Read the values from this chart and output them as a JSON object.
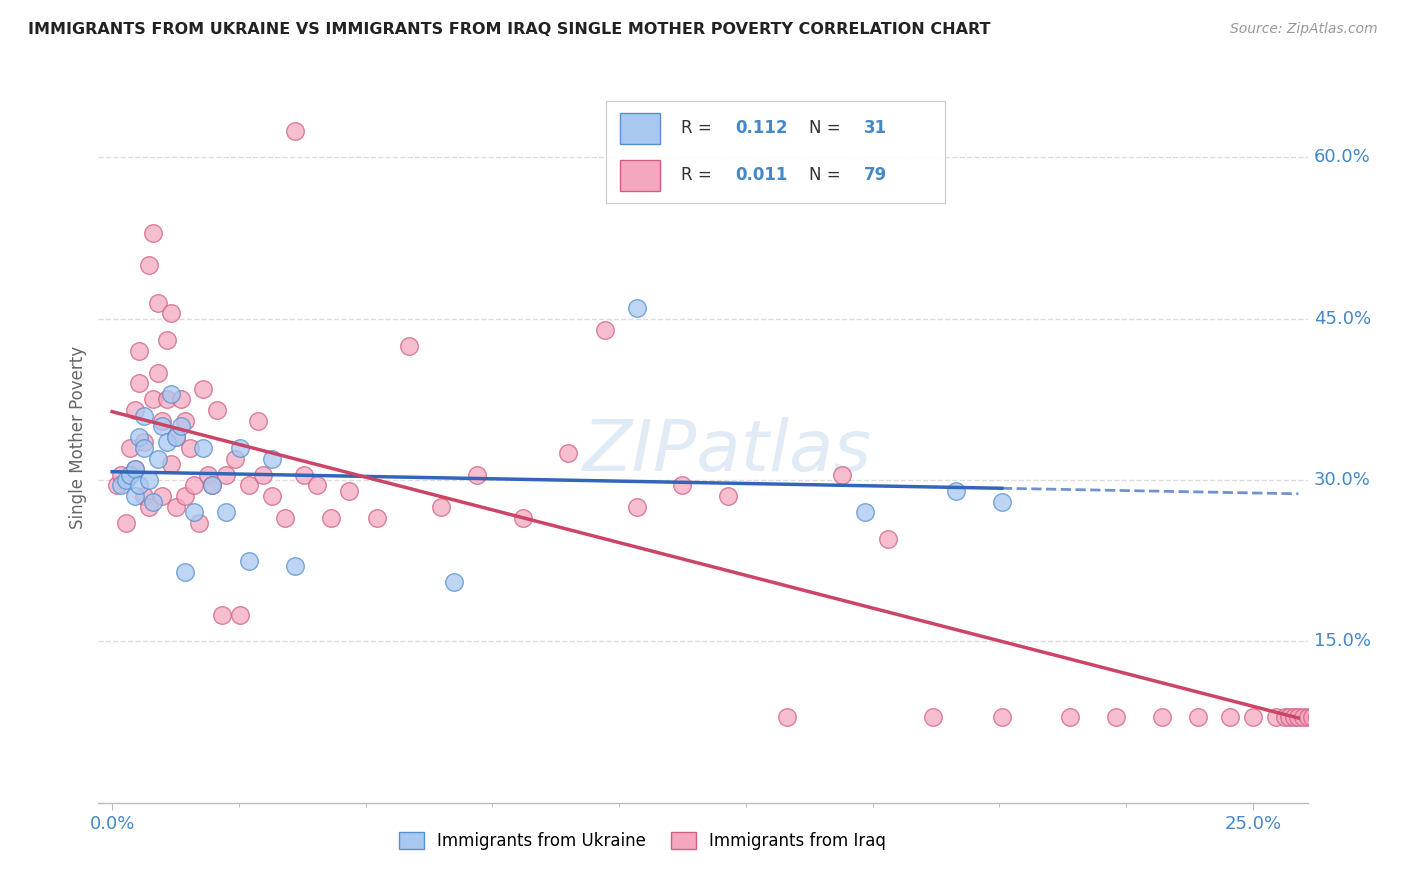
{
  "title": "IMMIGRANTS FROM UKRAINE VS IMMIGRANTS FROM IRAQ SINGLE MOTHER POVERTY CORRELATION CHART",
  "source": "Source: ZipAtlas.com",
  "ylabel": "Single Mother Poverty",
  "ukraine_color": "#a8c8f0",
  "iraq_color": "#f4a8c0",
  "ukraine_edge_color": "#5590d0",
  "iraq_edge_color": "#d06080",
  "ukraine_line_color": "#3366bb",
  "iraq_line_color": "#cc4466",
  "tick_color": "#4488cc",
  "ytick_vals": [
    0.15,
    0.3,
    0.45,
    0.6
  ],
  "ytick_labels": [
    "15.0%",
    "30.0%",
    "45.0%",
    "60.0%"
  ],
  "xlim": [
    -0.003,
    0.262
  ],
  "ylim": [
    0.0,
    0.68
  ],
  "ukraine_x": [
    0.002,
    0.003,
    0.004,
    0.005,
    0.005,
    0.006,
    0.006,
    0.007,
    0.007,
    0.008,
    0.009,
    0.01,
    0.011,
    0.012,
    0.013,
    0.014,
    0.015,
    0.016,
    0.018,
    0.02,
    0.022,
    0.025,
    0.028,
    0.03,
    0.035,
    0.04,
    0.075,
    0.115,
    0.165,
    0.185,
    0.195
  ],
  "ukraine_y": [
    0.295,
    0.3,
    0.305,
    0.31,
    0.285,
    0.295,
    0.34,
    0.33,
    0.36,
    0.3,
    0.28,
    0.32,
    0.35,
    0.335,
    0.38,
    0.34,
    0.35,
    0.215,
    0.27,
    0.33,
    0.295,
    0.27,
    0.33,
    0.225,
    0.32,
    0.22,
    0.205,
    0.46,
    0.27,
    0.29,
    0.28
  ],
  "iraq_x": [
    0.001,
    0.002,
    0.003,
    0.004,
    0.005,
    0.005,
    0.006,
    0.006,
    0.007,
    0.007,
    0.008,
    0.008,
    0.009,
    0.009,
    0.01,
    0.01,
    0.011,
    0.011,
    0.012,
    0.012,
    0.013,
    0.013,
    0.014,
    0.014,
    0.015,
    0.016,
    0.016,
    0.017,
    0.018,
    0.019,
    0.02,
    0.021,
    0.022,
    0.023,
    0.024,
    0.025,
    0.027,
    0.028,
    0.03,
    0.032,
    0.033,
    0.035,
    0.038,
    0.04,
    0.042,
    0.045,
    0.048,
    0.052,
    0.058,
    0.065,
    0.072,
    0.08,
    0.09,
    0.1,
    0.108,
    0.115,
    0.125,
    0.135,
    0.148,
    0.16,
    0.17,
    0.18,
    0.195,
    0.21,
    0.22,
    0.23,
    0.238,
    0.245,
    0.25,
    0.255,
    0.257,
    0.258,
    0.259,
    0.26,
    0.261,
    0.262,
    0.263,
    0.264,
    0.265
  ],
  "iraq_y": [
    0.295,
    0.305,
    0.26,
    0.33,
    0.31,
    0.365,
    0.39,
    0.42,
    0.335,
    0.285,
    0.5,
    0.275,
    0.375,
    0.53,
    0.4,
    0.465,
    0.355,
    0.285,
    0.43,
    0.375,
    0.315,
    0.455,
    0.275,
    0.34,
    0.375,
    0.355,
    0.285,
    0.33,
    0.295,
    0.26,
    0.385,
    0.305,
    0.295,
    0.365,
    0.175,
    0.305,
    0.32,
    0.175,
    0.295,
    0.355,
    0.305,
    0.285,
    0.265,
    0.625,
    0.305,
    0.295,
    0.265,
    0.29,
    0.265,
    0.425,
    0.275,
    0.305,
    0.265,
    0.325,
    0.44,
    0.275,
    0.295,
    0.285,
    0.08,
    0.305,
    0.245,
    0.08,
    0.08,
    0.08,
    0.08,
    0.08,
    0.08,
    0.08,
    0.08,
    0.08,
    0.08,
    0.08,
    0.08,
    0.08,
    0.08,
    0.08,
    0.08,
    0.08,
    0.08
  ],
  "ukraine_R": 0.112,
  "ukraine_N": 31,
  "iraq_R": 0.011,
  "iraq_N": 79,
  "watermark": "ZIPatlas",
  "watermark_color": "#c5d8ee"
}
